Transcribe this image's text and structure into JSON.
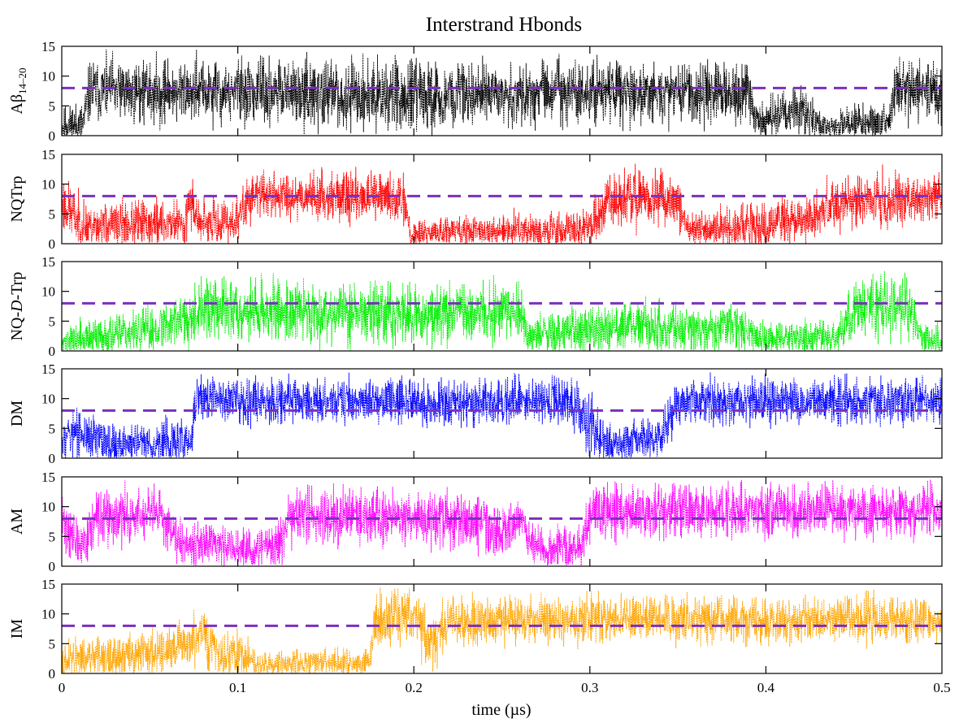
{
  "chart_data": {
    "type": "line",
    "title": "Interstrand Hbonds",
    "xlabel": "time (µs)",
    "xlim": [
      0,
      0.5
    ],
    "x_ticks": [
      "0",
      "0.1",
      "0.2",
      "0.3",
      "0.4",
      "0.5"
    ],
    "y_ticks": [
      "0",
      "5",
      "10",
      "15"
    ],
    "ylim": [
      0,
      15
    ],
    "threshold": 8,
    "threshold_color": "#7b2fbe",
    "grid": false,
    "legend": "none",
    "series": [
      {
        "ylabel_main": "Aβ",
        "ylabel_sub": "14–20",
        "ylabel_ital": "",
        "ylabel_tail": "",
        "color": "#000000",
        "seed": 11,
        "profile": [
          [
            0.0,
            1.5,
            2.5
          ],
          [
            0.012,
            2.0,
            3.0
          ],
          [
            0.016,
            7.5,
            4.0
          ],
          [
            0.09,
            7.3,
            4.2
          ],
          [
            0.215,
            6.5,
            4.5
          ],
          [
            0.22,
            7.2,
            4.0
          ],
          [
            0.39,
            7.3,
            4.0
          ],
          [
            0.395,
            2.0,
            2.5
          ],
          [
            0.42,
            4.5,
            3.5
          ],
          [
            0.432,
            1.5,
            2.0
          ],
          [
            0.47,
            2.5,
            2.5
          ],
          [
            0.475,
            8.0,
            4.0
          ],
          [
            0.5,
            7.0,
            4.0
          ]
        ]
      },
      {
        "ylabel_main": "NQTrp",
        "ylabel_sub": "",
        "ylabel_ital": "",
        "ylabel_tail": "",
        "color": "#ff0000",
        "seed": 23,
        "profile": [
          [
            0.0,
            7.0,
            4.0
          ],
          [
            0.012,
            3.0,
            3.0
          ],
          [
            0.07,
            3.5,
            3.0
          ],
          [
            0.072,
            7.5,
            3.5
          ],
          [
            0.08,
            3.0,
            3.0
          ],
          [
            0.1,
            4.0,
            3.0
          ],
          [
            0.108,
            8.2,
            3.0
          ],
          [
            0.155,
            8.0,
            3.0
          ],
          [
            0.195,
            7.5,
            3.5
          ],
          [
            0.198,
            1.8,
            2.0
          ],
          [
            0.3,
            2.5,
            2.5
          ],
          [
            0.31,
            7.5,
            3.5
          ],
          [
            0.35,
            7.5,
            3.5
          ],
          [
            0.355,
            2.5,
            2.5
          ],
          [
            0.42,
            3.5,
            3.0
          ],
          [
            0.44,
            7.0,
            3.5
          ],
          [
            0.5,
            8.0,
            3.0
          ]
        ]
      },
      {
        "ylabel_main": "NQ-",
        "ylabel_sub": "",
        "ylabel_ital": "D",
        "ylabel_tail": "-Trp",
        "color": "#00ee00",
        "seed": 37,
        "profile": [
          [
            0.0,
            1.5,
            2.0
          ],
          [
            0.05,
            3.5,
            3.0
          ],
          [
            0.08,
            7.0,
            4.0
          ],
          [
            0.15,
            6.5,
            4.0
          ],
          [
            0.2,
            6.0,
            4.0
          ],
          [
            0.26,
            6.5,
            4.0
          ],
          [
            0.265,
            2.5,
            2.5
          ],
          [
            0.33,
            4.5,
            3.5
          ],
          [
            0.36,
            3.0,
            3.0
          ],
          [
            0.38,
            4.5,
            3.0
          ],
          [
            0.4,
            2.0,
            2.0
          ],
          [
            0.44,
            2.5,
            2.5
          ],
          [
            0.45,
            7.0,
            4.0
          ],
          [
            0.48,
            7.0,
            4.0
          ],
          [
            0.49,
            2.0,
            2.0
          ],
          [
            0.5,
            1.5,
            2.0
          ]
        ]
      },
      {
        "ylabel_main": "DM",
        "ylabel_sub": "",
        "ylabel_ital": "",
        "ylabel_tail": "",
        "color": "#0000ff",
        "seed": 53,
        "profile": [
          [
            0.0,
            4.5,
            3.5
          ],
          [
            0.03,
            2.5,
            3.0
          ],
          [
            0.074,
            2.5,
            3.0
          ],
          [
            0.076,
            10.0,
            3.0
          ],
          [
            0.2,
            9.5,
            3.0
          ],
          [
            0.29,
            9.5,
            3.0
          ],
          [
            0.3,
            5.5,
            4.0
          ],
          [
            0.31,
            2.5,
            2.5
          ],
          [
            0.34,
            3.5,
            3.0
          ],
          [
            0.35,
            9.5,
            3.0
          ],
          [
            0.5,
            9.5,
            3.0
          ]
        ]
      },
      {
        "ylabel_main": "AM",
        "ylabel_sub": "",
        "ylabel_ital": "",
        "ylabel_tail": "",
        "color": "#ff00ff",
        "seed": 71,
        "profile": [
          [
            0.0,
            8.0,
            4.0
          ],
          [
            0.01,
            3.0,
            3.0
          ],
          [
            0.02,
            8.0,
            3.5
          ],
          [
            0.055,
            8.5,
            3.5
          ],
          [
            0.07,
            4.0,
            3.0
          ],
          [
            0.11,
            2.5,
            2.5
          ],
          [
            0.125,
            4.0,
            3.0
          ],
          [
            0.13,
            8.5,
            3.5
          ],
          [
            0.2,
            8.5,
            3.5
          ],
          [
            0.24,
            7.0,
            4.0
          ],
          [
            0.25,
            4.5,
            3.5
          ],
          [
            0.26,
            8.0,
            3.5
          ],
          [
            0.27,
            3.0,
            3.0
          ],
          [
            0.295,
            3.0,
            3.0
          ],
          [
            0.3,
            9.0,
            3.5
          ],
          [
            0.5,
            9.5,
            3.5
          ]
        ]
      },
      {
        "ylabel_main": "IM",
        "ylabel_sub": "",
        "ylabel_ital": "",
        "ylabel_tail": "",
        "color": "#ffa500",
        "seed": 97,
        "profile": [
          [
            0.0,
            2.0,
            2.5
          ],
          [
            0.06,
            3.5,
            3.0
          ],
          [
            0.08,
            6.0,
            4.0
          ],
          [
            0.09,
            3.0,
            3.0
          ],
          [
            0.1,
            3.5,
            3.0
          ],
          [
            0.11,
            1.5,
            2.0
          ],
          [
            0.175,
            2.0,
            2.0
          ],
          [
            0.178,
            9.0,
            4.0
          ],
          [
            0.2,
            10.0,
            3.5
          ],
          [
            0.21,
            5.0,
            4.0
          ],
          [
            0.22,
            8.5,
            3.5
          ],
          [
            0.25,
            9.0,
            3.0
          ],
          [
            0.5,
            9.0,
            3.0
          ]
        ]
      }
    ]
  }
}
